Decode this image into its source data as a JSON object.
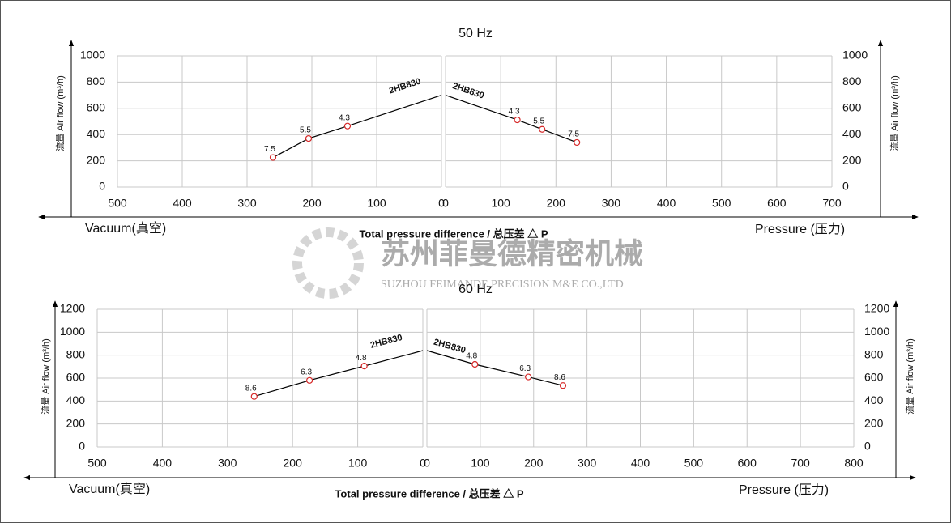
{
  "header": {
    "watermark_cn": "苏州菲曼德精密机械",
    "watermark_en": "SUZHOU FEIMANDE PRECISION M&E CO.,LTD"
  },
  "chart_data": [
    {
      "type": "line",
      "title": "50 Hz",
      "ylabel": "流量 Air flow (m³/h)",
      "left_label": "Vacuum(真空)",
      "right_label": "Pressure (压力)",
      "xlabel": "Total pressure difference / 总压差 △ P",
      "plots": [
        {
          "xlim": [
            500,
            0
          ],
          "xticks": [
            500,
            400,
            300,
            200,
            100,
            0
          ],
          "ylim": [
            0,
            1000
          ],
          "yticks": [
            0,
            200,
            400,
            600,
            800,
            1000
          ],
          "grid": true,
          "series": [
            {
              "name": "2HB830",
              "color": "#000000",
              "marker_color": "#d62828",
              "x": [
                260,
                205,
                145,
                0
              ],
              "y": [
                225,
                370,
                465,
                700
              ],
              "point_labels": [
                "7.5",
                "5.5",
                "4.3",
                null
              ]
            }
          ]
        },
        {
          "xlim": [
            0,
            700
          ],
          "xticks": [
            0,
            100,
            200,
            300,
            400,
            500,
            600,
            700
          ],
          "ylim": [
            0,
            1000
          ],
          "yticks": [
            0,
            200,
            400,
            600,
            800,
            1000
          ],
          "grid": true,
          "series": [
            {
              "name": "2HB830",
              "color": "#000000",
              "marker_color": "#d62828",
              "x": [
                0,
                130,
                175,
                238
              ],
              "y": [
                700,
                512,
                440,
                340
              ],
              "point_labels": [
                null,
                "4.3",
                "5.5",
                "7.5"
              ]
            }
          ]
        }
      ]
    },
    {
      "type": "line",
      "title": "60 Hz",
      "ylabel": "流量 Air flow (m³/h)",
      "left_label": "Vacuum(真空)",
      "right_label": "Pressure (压力)",
      "xlabel": "Total pressure difference / 总压差 △ P",
      "plots": [
        {
          "xlim": [
            500,
            0
          ],
          "xticks": [
            500,
            400,
            300,
            200,
            100,
            0
          ],
          "ylim": [
            0,
            1200
          ],
          "yticks": [
            0,
            200,
            400,
            600,
            800,
            1000,
            1200
          ],
          "grid": true,
          "series": [
            {
              "name": "2HB830",
              "color": "#000000",
              "marker_color": "#d62828",
              "x": [
                259,
                174,
                90,
                0
              ],
              "y": [
                440,
                580,
                705,
                840
              ],
              "point_labels": [
                "8.6",
                "6.3",
                "4.8",
                null
              ]
            }
          ]
        },
        {
          "xlim": [
            0,
            800
          ],
          "xticks": [
            0,
            100,
            200,
            300,
            400,
            500,
            600,
            700,
            800
          ],
          "ylim": [
            0,
            1200
          ],
          "yticks": [
            0,
            200,
            400,
            600,
            800,
            1000,
            1200
          ],
          "grid": true,
          "series": [
            {
              "name": "2HB830",
              "color": "#000000",
              "marker_color": "#d62828",
              "x": [
                0,
                90,
                190,
                255
              ],
              "y": [
                840,
                720,
                610,
                535
              ],
              "point_labels": [
                null,
                "4.8",
                "6.3",
                "8.6"
              ]
            }
          ]
        }
      ]
    }
  ]
}
